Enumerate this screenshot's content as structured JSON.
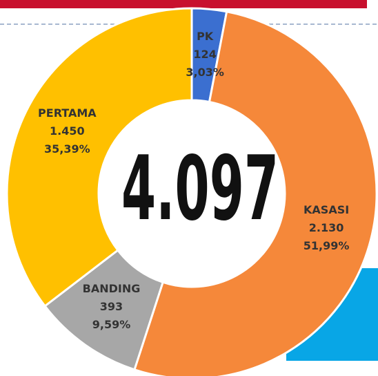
{
  "chart_data": {
    "type": "donut",
    "categories": [
      "PK",
      "KASASI",
      "BANDING",
      "PERTAMA"
    ],
    "values": [
      124,
      2130,
      393,
      1450
    ],
    "value_labels": [
      "124",
      "2.130",
      "393",
      "1.450"
    ],
    "percent_labels": [
      "3,03%",
      "51,99%",
      "9,59%",
      "35,39%"
    ],
    "colors": [
      "#3b6fd0",
      "#f5883a",
      "#a7a7a7",
      "#ffc000"
    ],
    "center_label": "4.097"
  }
}
